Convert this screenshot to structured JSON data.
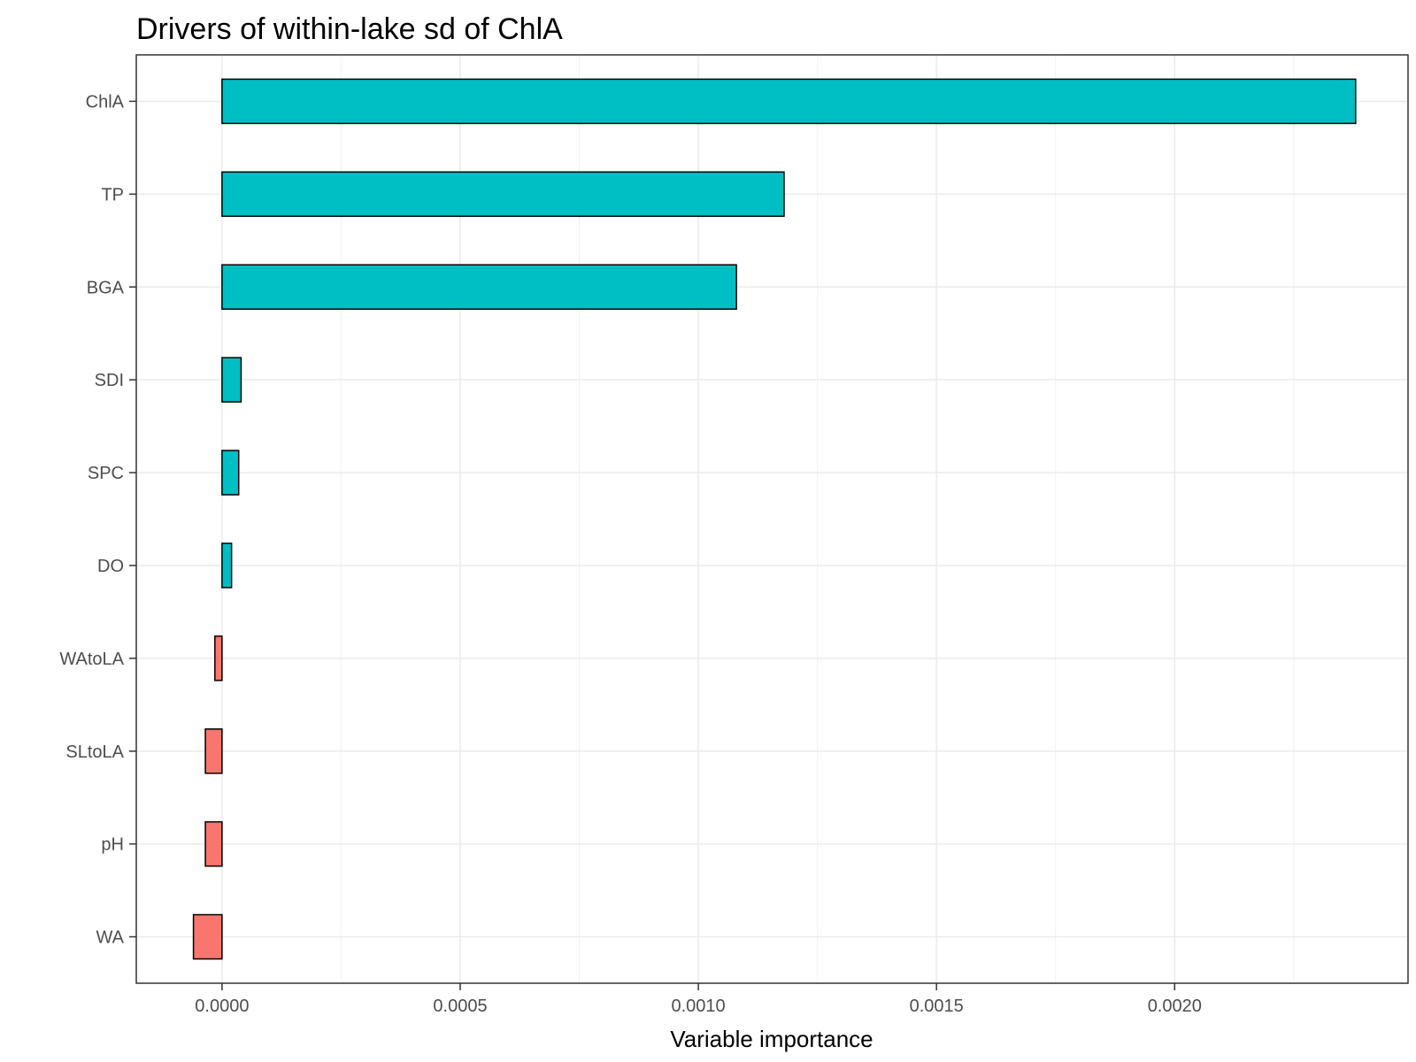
{
  "chart_data": {
    "type": "bar",
    "orientation": "horizontal",
    "title": "Drivers of within-lake sd of ChlA",
    "xlabel": "Variable importance",
    "ylabel": "",
    "categories": [
      "ChlA",
      "TP",
      "BGA",
      "SDI",
      "SPC",
      "DO",
      "WAtoLA",
      "SLtoLA",
      "pH",
      "WA"
    ],
    "values": [
      0.00238,
      0.00118,
      0.00108,
      4e-05,
      3.5e-05,
      2e-05,
      -1.5e-05,
      -3.5e-05,
      -3.5e-05,
      -6e-05
    ],
    "xlim": [
      -0.00018,
      0.00249
    ],
    "xticks": [
      0.0,
      0.0005,
      0.001,
      0.0015,
      0.002
    ],
    "xtick_labels": [
      "0.0000",
      "0.0005",
      "0.0010",
      "0.0015",
      "0.0020"
    ],
    "grid": true,
    "legend": "none",
    "colors": {
      "positive": "#00BFC4",
      "negative": "#F8766D",
      "bar_outline": "#000000",
      "grid_major": "#ebebeb",
      "grid_minor": "#f2f2f2",
      "panel_border": "#333333",
      "tick_label": "#4d4d4d"
    }
  }
}
